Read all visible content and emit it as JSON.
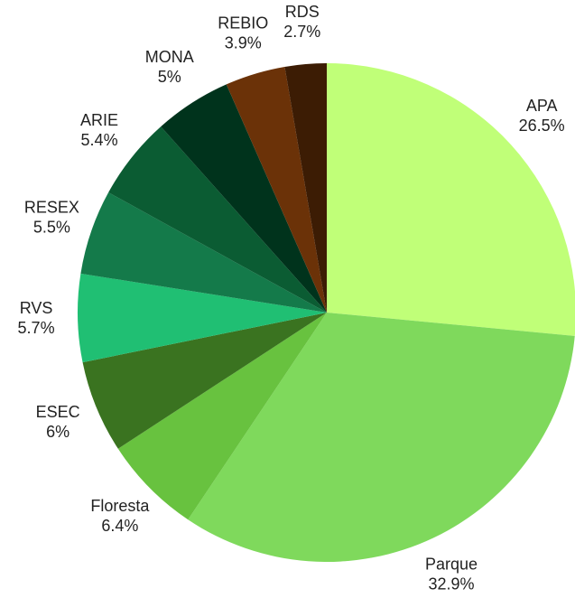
{
  "chart_data": {
    "type": "pie",
    "categories": [
      "APA",
      "Parque",
      "Floresta",
      "ESEC",
      "RVS",
      "RESEX",
      "ARIE",
      "MONA",
      "REBIO",
      "RDS"
    ],
    "values": [
      26.5,
      32.9,
      6.4,
      6,
      5.7,
      5.5,
      5.4,
      5,
      3.9,
      2.7
    ],
    "value_labels": [
      "26.5%",
      "32.9%",
      "6.4%",
      "6%",
      "5.7%",
      "5.5%",
      "5.4%",
      "5%",
      "3.9%",
      "2.7%"
    ],
    "colors": [
      "#c0ff78",
      "#7fd95c",
      "#68c23f",
      "#3a7320",
      "#20bf73",
      "#147a4a",
      "#0b5c33",
      "#00331c",
      "#6b3208",
      "#3c1c04"
    ]
  }
}
